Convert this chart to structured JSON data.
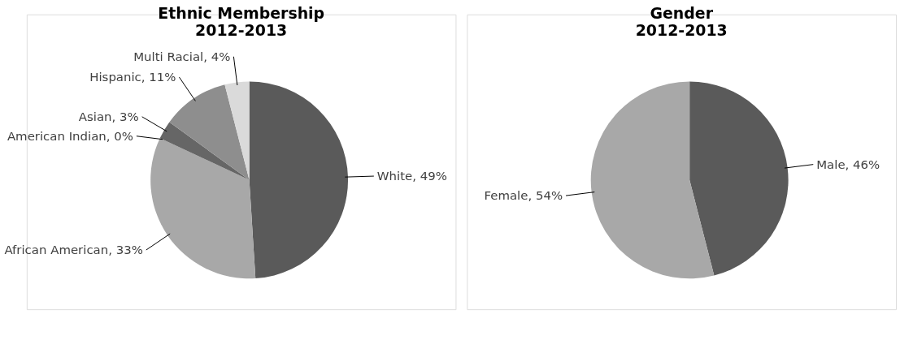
{
  "chart_data": [
    {
      "type": "pie",
      "title": "Ethnic Membership\n2012-2013",
      "categories": [
        "White",
        "African American",
        "American Indian",
        "Asian",
        "Hispanic",
        "Multi Racial"
      ],
      "values": [
        49,
        33,
        0,
        3,
        11,
        4
      ],
      "colors": [
        "#5a5a5a",
        "#a8a8a8",
        "#7a7a7a",
        "#666666",
        "#8e8e8e",
        "#dadada"
      ],
      "value_labels": [
        "49%",
        "33%",
        "0%",
        "3%",
        "11%",
        "4%"
      ]
    },
    {
      "type": "pie",
      "title": "Gender\n2012-2013",
      "categories": [
        "Male",
        "Female"
      ],
      "values": [
        46,
        54
      ],
      "colors": [
        "#5a5a5a",
        "#b4b4b4"
      ],
      "value_labels": [
        "46%",
        "54%"
      ]
    }
  ]
}
